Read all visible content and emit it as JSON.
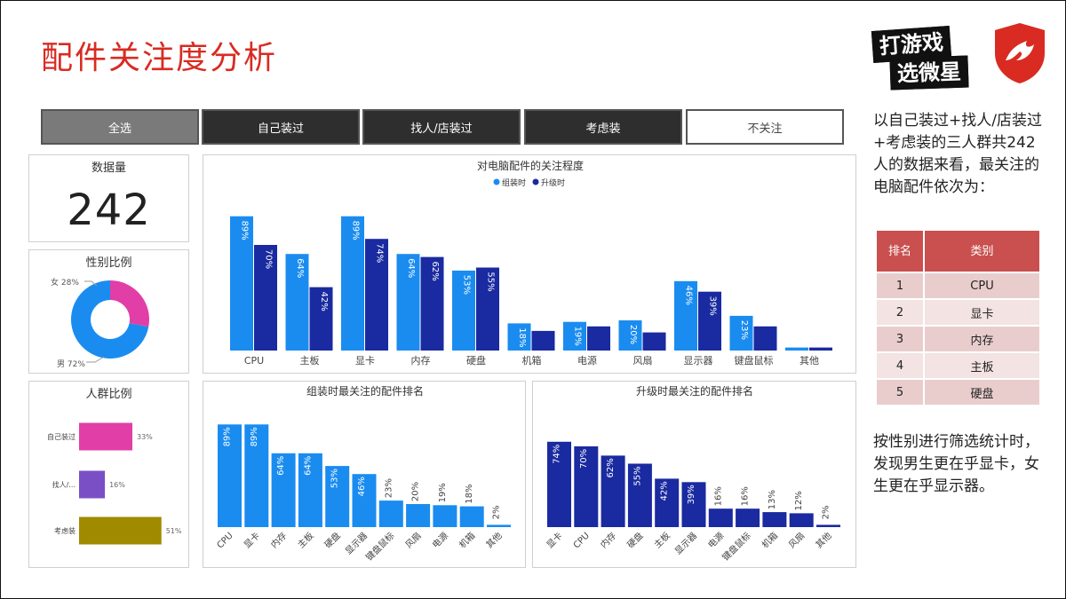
{
  "page": {
    "title": "配件关注度分析"
  },
  "logos": {
    "game_line1": "打游戏",
    "game_line2": "选微星"
  },
  "filters": [
    "全选",
    "自己装过",
    "找人/店装过",
    "考虑装",
    "不关注"
  ],
  "count_card": {
    "title": "数据量",
    "value": "242"
  },
  "gender_card": {
    "title": "性别比例",
    "female_label": "女 28%",
    "male_label": "男 72%",
    "colors": {
      "female": "#e23ea7",
      "male": "#1a8cf0"
    }
  },
  "crowd_card": {
    "title": "人群比例"
  },
  "side": {
    "summary_text": "以自己装过+找人/店装过+考虑装的三人群共242人的数据来看，最关注的电脑配件依次为：",
    "table_headers": [
      "排名",
      "类别"
    ],
    "rows": [
      {
        "rank": "1",
        "category": "CPU"
      },
      {
        "rank": "2",
        "category": "显卡"
      },
      {
        "rank": "3",
        "category": "内存"
      },
      {
        "rank": "4",
        "category": "主板"
      },
      {
        "rank": "5",
        "category": "硬盘"
      }
    ],
    "gender_note": "按性别进行筛选统计时，发现男生更在乎显卡，女生更在乎显示器。"
  },
  "chart_data": [
    {
      "type": "bar",
      "title": "对电脑配件的关注程度",
      "categories": [
        "CPU",
        "主板",
        "显卡",
        "内存",
        "硬盘",
        "机箱",
        "电源",
        "风扇",
        "显示器",
        "键盘鼠标",
        "其他"
      ],
      "series": [
        {
          "name": "组装时",
          "color": "#1a8cf0",
          "values": [
            89,
            64,
            89,
            64,
            53,
            18,
            19,
            20,
            46,
            23,
            2
          ],
          "labels": [
            "89%",
            "64%",
            "89%",
            "64%",
            "53%",
            "18%",
            "19%",
            "20%",
            "46%",
            "23%",
            ""
          ]
        },
        {
          "name": "升级时",
          "color": "#1a2aa0",
          "values": [
            70,
            42,
            74,
            62,
            55,
            13,
            16,
            12,
            39,
            16,
            2
          ],
          "labels": [
            "70%",
            "42%",
            "74%",
            "62%",
            "55%",
            "",
            "",
            "",
            "39%",
            "",
            ""
          ]
        }
      ],
      "ylim": [
        0,
        100
      ],
      "legend": "top-center"
    },
    {
      "type": "bar",
      "title": "组装时最关注的配件排名",
      "categories": [
        "CPU",
        "显卡",
        "内存",
        "主板",
        "硬盘",
        "显示器",
        "键盘鼠标",
        "风扇",
        "电源",
        "机箱",
        "其他"
      ],
      "values": [
        89,
        89,
        64,
        64,
        53,
        46,
        23,
        20,
        19,
        18,
        2
      ],
      "labels": [
        "89%",
        "89%",
        "64%",
        "64%",
        "53%",
        "46%",
        "23%",
        "20%",
        "19%",
        "18%",
        "2%"
      ],
      "color": "#1a8cf0",
      "ylim": [
        0,
        100
      ]
    },
    {
      "type": "bar",
      "title": "升级时最关注的配件排名",
      "categories": [
        "显卡",
        "CPU",
        "内存",
        "硬盘",
        "主板",
        "显示器",
        "电源",
        "键盘鼠标",
        "机箱",
        "风扇",
        "其他"
      ],
      "values": [
        74,
        70,
        62,
        55,
        42,
        39,
        16,
        16,
        13,
        12,
        2
      ],
      "labels": [
        "74%",
        "70%",
        "62%",
        "55%",
        "42%",
        "39%",
        "16%",
        "16%",
        "13%",
        "12%",
        "2%"
      ],
      "color": "#1a2aa0",
      "ylim": [
        0,
        100
      ]
    },
    {
      "type": "bar",
      "orientation": "horizontal",
      "categories": [
        "自己装过",
        "找人/...",
        "考虑装"
      ],
      "values": [
        33,
        16,
        51
      ],
      "labels": [
        "33%",
        "16%",
        "51%"
      ],
      "colors": [
        "#e23ea7",
        "#7a4fc6",
        "#a08a00"
      ],
      "xlim": [
        0,
        55
      ]
    },
    {
      "type": "pie",
      "donut": true,
      "slices": [
        {
          "name": "女",
          "value": 28
        },
        {
          "name": "男",
          "value": 72
        }
      ]
    }
  ]
}
